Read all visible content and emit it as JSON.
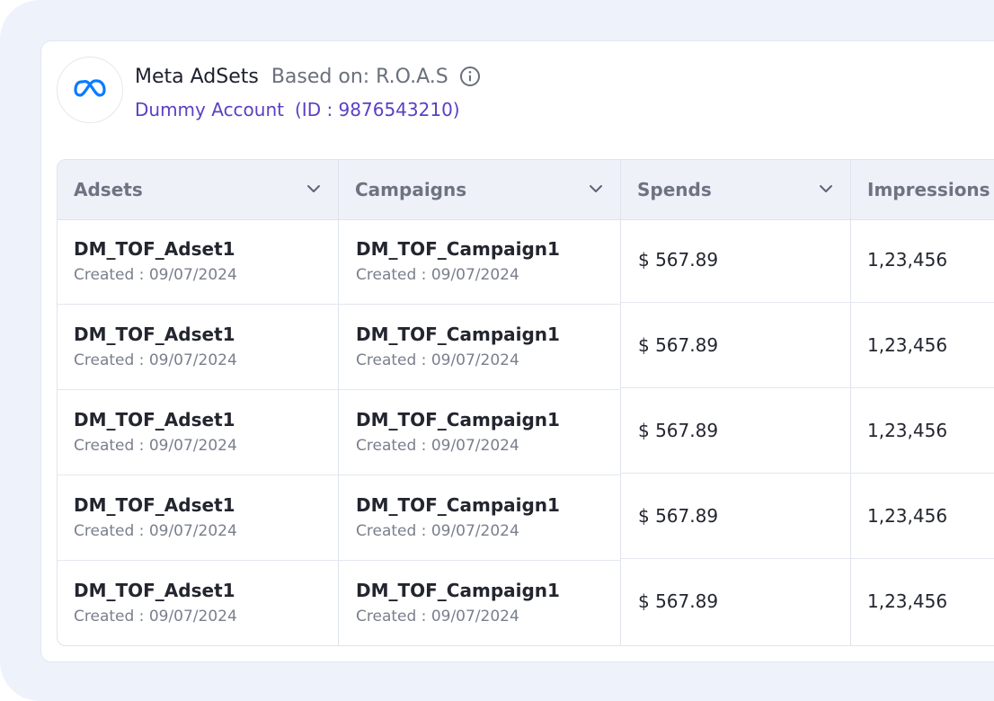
{
  "header": {
    "title": "Meta AdSets",
    "based_on": "Based on: R.O.A.S",
    "account_name": "Dummy Account",
    "account_id": "(ID : 9876543210)",
    "logo_icon": "meta-infinity-icon",
    "info_icon": "info-icon"
  },
  "colors": {
    "background_panel": "#eef2fb",
    "accent_purple": "#5b3fc4",
    "meta_blue": "#0a7cff",
    "header_bg": "#eef1f8"
  },
  "table": {
    "columns": [
      {
        "label": "Adsets",
        "icon": "chevron-down-icon"
      },
      {
        "label": "Campaigns",
        "icon": "chevron-down-icon"
      },
      {
        "label": "Spends",
        "icon": "chevron-down-icon"
      },
      {
        "label": "Impressions"
      }
    ],
    "rows": [
      {
        "adset": "DM_TOF_Adset1",
        "adset_created": "Created : 09/07/2024",
        "campaign": "DM_TOF_Campaign1",
        "campaign_created": "Created : 09/07/2024",
        "spends": "$ 567.89",
        "impressions": "1,23,456"
      },
      {
        "adset": "DM_TOF_Adset1",
        "adset_created": "Created : 09/07/2024",
        "campaign": "DM_TOF_Campaign1",
        "campaign_created": "Created : 09/07/2024",
        "spends": "$ 567.89",
        "impressions": "1,23,456"
      },
      {
        "adset": "DM_TOF_Adset1",
        "adset_created": "Created : 09/07/2024",
        "campaign": "DM_TOF_Campaign1",
        "campaign_created": "Created : 09/07/2024",
        "spends": "$ 567.89",
        "impressions": "1,23,456"
      },
      {
        "adset": "DM_TOF_Adset1",
        "adset_created": "Created : 09/07/2024",
        "campaign": "DM_TOF_Campaign1",
        "campaign_created": "Created : 09/07/2024",
        "spends": "$ 567.89",
        "impressions": "1,23,456"
      },
      {
        "adset": "DM_TOF_Adset1",
        "adset_created": "Created : 09/07/2024",
        "campaign": "DM_TOF_Campaign1",
        "campaign_created": "Created : 09/07/2024",
        "spends": "$ 567.89",
        "impressions": "1,23,456"
      }
    ]
  }
}
